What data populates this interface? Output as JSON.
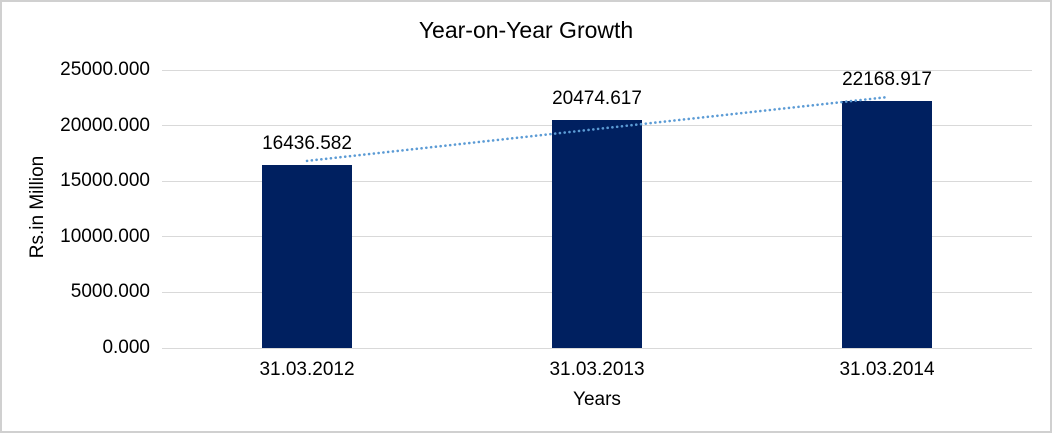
{
  "chart_data": {
    "type": "bar",
    "title": "Year-on-Year Growth",
    "xlabel": "Years",
    "ylabel": "Rs.in Million",
    "categories": [
      "31.03.2012",
      "31.03.2013",
      "31.03.2014"
    ],
    "values": [
      16436.582,
      20474.617,
      22168.917
    ],
    "data_labels": [
      "16436.582",
      "20474.617",
      "22168.917"
    ],
    "y_ticks": [
      {
        "label": "25000.000",
        "value": 25000
      },
      {
        "label": "20000.000",
        "value": 20000
      },
      {
        "label": "15000.000",
        "value": 15000
      },
      {
        "label": "10000.000",
        "value": 10000
      },
      {
        "label": "5000.000",
        "value": 5000
      },
      {
        "label": "0.000",
        "value": 0
      }
    ],
    "ylim": [
      0,
      25000
    ],
    "grid": true,
    "legend": "none",
    "series_name": "Year-on-Year Growth",
    "trendline": {
      "type": "linear",
      "style": "dotted",
      "color": "#5b9bd5"
    },
    "colors": {
      "bar": "#002060",
      "trendline": "#5b9bd5",
      "gridline": "#d9d9d9",
      "axis_line": "#d9d9d9",
      "text": "#000000",
      "background": "#ffffff",
      "frame_border": "#d0d0d0"
    }
  }
}
